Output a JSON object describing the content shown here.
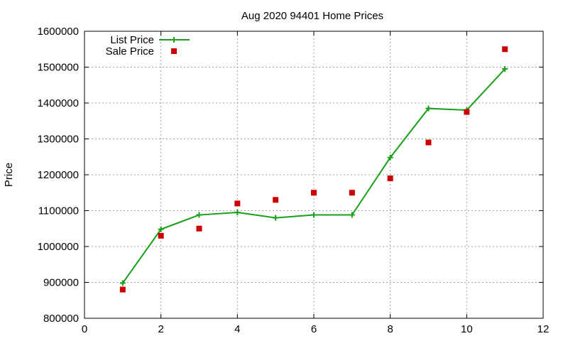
{
  "chart_data": {
    "type": "line",
    "title": "Aug 2020 94401 Home Prices",
    "xlabel": "",
    "ylabel": "Price",
    "xlim": [
      0,
      12
    ],
    "ylim": [
      800000,
      1600000
    ],
    "x_ticks": [
      0,
      2,
      4,
      6,
      8,
      10,
      12
    ],
    "y_ticks": [
      800000,
      900000,
      1000000,
      1100000,
      1200000,
      1300000,
      1400000,
      1500000,
      1600000
    ],
    "x_tick_labels": [
      "0",
      "2",
      "4",
      "6",
      "8",
      "10",
      "12"
    ],
    "y_tick_labels": [
      "800000",
      "900000",
      "1000000",
      "1100000",
      "1200000",
      "1300000",
      "1400000",
      "1500000",
      "1600000"
    ],
    "grid": true,
    "legend_position": "top-left",
    "x": [
      1,
      2,
      3,
      4,
      5,
      6,
      7,
      8,
      9,
      10,
      11
    ],
    "series": [
      {
        "name": "List Price",
        "style": "line-plus",
        "color": "#1a9f1a",
        "values": [
          898000,
          1048000,
          1088000,
          1095000,
          1080000,
          1088000,
          1088000,
          1248000,
          1385000,
          1380000,
          1495000
        ]
      },
      {
        "name": "Sale Price",
        "style": "square",
        "color": "#cc0000",
        "values": [
          880000,
          1030000,
          1050000,
          1120000,
          1130000,
          1150000,
          1150000,
          1190000,
          1290000,
          1375000,
          1550000
        ]
      }
    ]
  }
}
